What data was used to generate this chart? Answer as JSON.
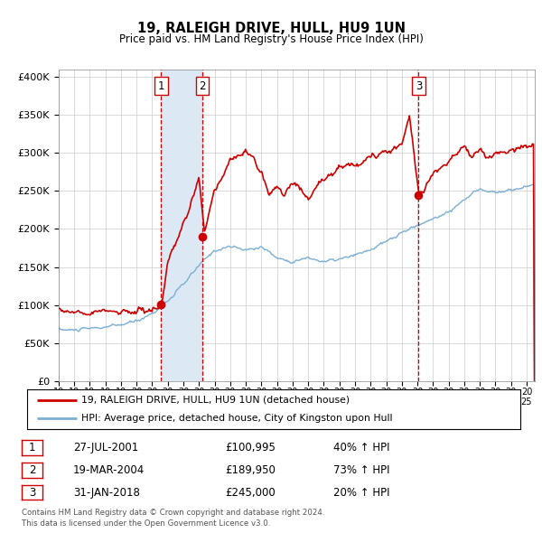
{
  "title": "19, RALEIGH DRIVE, HULL, HU9 1UN",
  "subtitle": "Price paid vs. HM Land Registry's House Price Index (HPI)",
  "ylabel_ticks": [
    "£0",
    "£50K",
    "£100K",
    "£150K",
    "£200K",
    "£250K",
    "£300K",
    "£350K",
    "£400K"
  ],
  "ytick_values": [
    0,
    50000,
    100000,
    150000,
    200000,
    250000,
    300000,
    350000,
    400000
  ],
  "ylim": [
    0,
    410000
  ],
  "xlim_start": 1995.0,
  "xlim_end": 2025.5,
  "hpi_color": "#7bafd4",
  "price_color": "#cc0000",
  "shade_color": "#dce9f5",
  "transaction_line_color": "#cc0000",
  "background_color": "#ffffff",
  "grid_color": "#cccccc",
  "transactions": [
    {
      "id": 1,
      "date_label": "27-JUL-2001",
      "x": 2001.57,
      "price": 100995,
      "pct": "40%",
      "dir": "↑"
    },
    {
      "id": 2,
      "date_label": "19-MAR-2004",
      "x": 2004.22,
      "price": 189950,
      "pct": "73%",
      "dir": "↑"
    },
    {
      "id": 3,
      "date_label": "31-JAN-2018",
      "x": 2018.08,
      "price": 245000,
      "pct": "20%",
      "dir": "↑"
    }
  ],
  "legend_entries": [
    "19, RALEIGH DRIVE, HULL, HU9 1UN (detached house)",
    "HPI: Average price, detached house, City of Kingston upon Hull"
  ],
  "footer_lines": [
    "Contains HM Land Registry data © Crown copyright and database right 2024.",
    "This data is licensed under the Open Government Licence v3.0."
  ],
  "table_rows": [
    {
      "id": 1,
      "date": "27-JUL-2001",
      "price": "£100,995",
      "change": "40% ↑ HPI"
    },
    {
      "id": 2,
      "date": "19-MAR-2004",
      "price": "£189,950",
      "change": "73% ↑ HPI"
    },
    {
      "id": 3,
      "date": "31-JAN-2018",
      "price": "£245,000",
      "change": "20% ↑ HPI"
    }
  ]
}
